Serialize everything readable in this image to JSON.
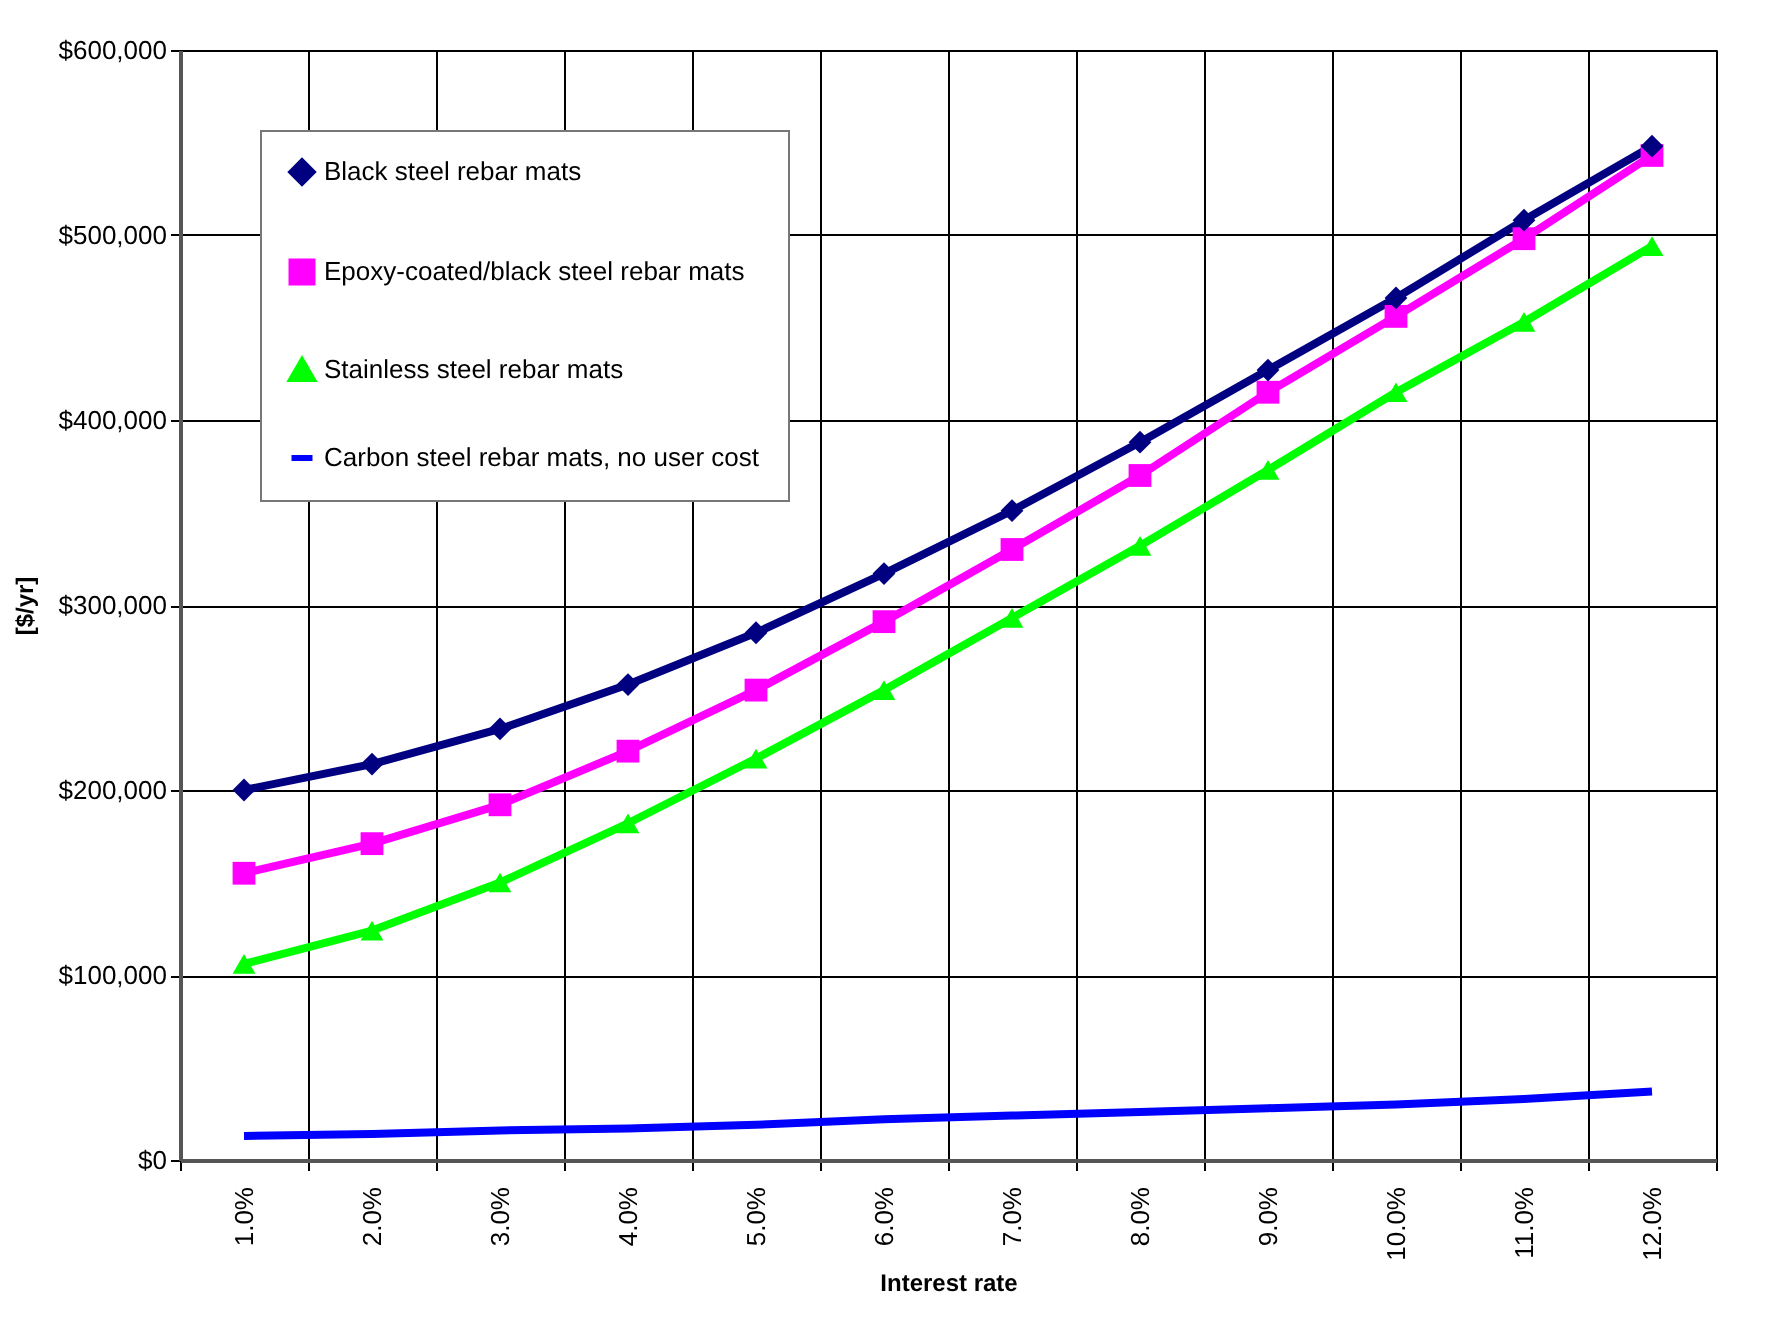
{
  "chart_data": {
    "type": "line",
    "xlabel": "Interest rate",
    "ylabel": "[$/yr]",
    "categories": [
      "1.0%",
      "2.0%",
      "3.0%",
      "4.0%",
      "5.0%",
      "6.0%",
      "7.0%",
      "8.0%",
      "9.0%",
      "10.0%",
      "11.0%",
      "12.0%"
    ],
    "ylim": [
      0,
      600000
    ],
    "yticks": [
      {
        "value": 0,
        "label": "$0"
      },
      {
        "value": 100000,
        "label": "$100,000"
      },
      {
        "value": 200000,
        "label": "$200,000"
      },
      {
        "value": 300000,
        "label": "$300,000"
      },
      {
        "value": 400000,
        "label": "$400,000"
      },
      {
        "value": 500000,
        "label": "$500,000"
      },
      {
        "value": 600000,
        "label": "$600,000"
      }
    ],
    "grid": true,
    "legend": "top left",
    "series": [
      {
        "name": "Black steel rebar mats",
        "color": "#000080",
        "marker": "diamond",
        "values": [
          200000,
          214000,
          233000,
          257000,
          285000,
          317000,
          351000,
          388000,
          427000,
          466000,
          508000,
          548000
        ]
      },
      {
        "name": "Epoxy-coated/black steel rebar mats",
        "color": "#ff00ff",
        "marker": "square",
        "values": [
          155000,
          171000,
          192000,
          221000,
          254000,
          291000,
          330000,
          370000,
          415000,
          456000,
          498000,
          543000
        ]
      },
      {
        "name": "Stainless steel rebar mats",
        "color": "#00ff00",
        "marker": "triangle",
        "values": [
          106000,
          124000,
          150000,
          182000,
          217000,
          254000,
          293000,
          332000,
          373000,
          415000,
          453000,
          494000
        ]
      },
      {
        "name": "Carbon steel rebar mats, no user cost",
        "color": "#0000ff",
        "marker": "none",
        "values": [
          13000,
          14000,
          16000,
          17000,
          19000,
          22000,
          24000,
          26000,
          28000,
          30000,
          33000,
          37000
        ]
      }
    ]
  }
}
